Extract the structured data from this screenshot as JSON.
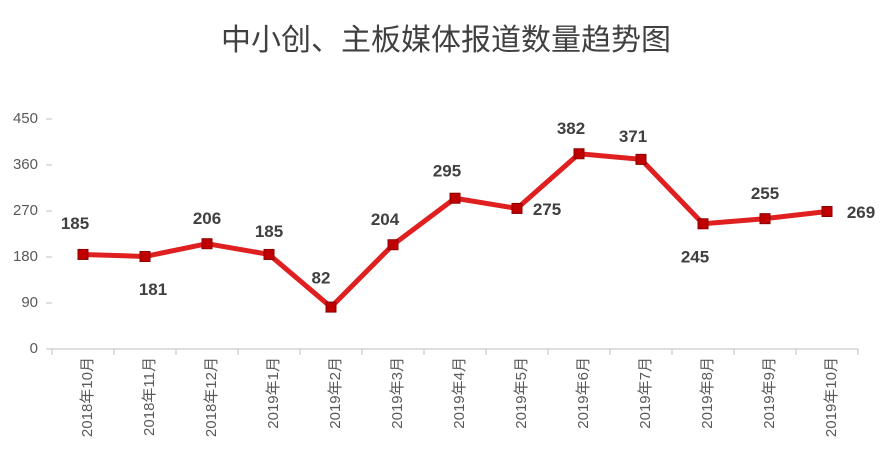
{
  "chart_data": {
    "type": "line",
    "title": "中小创、主板媒体报道数量趋势图",
    "categories": [
      "2018年10月",
      "2018年11月",
      "2018年12月",
      "2019年1月",
      "2019年2月",
      "2019年3月",
      "2019年4月",
      "2019年5月",
      "2019年6月",
      "2019年7月",
      "2019年8月",
      "2019年9月",
      "2019年10月"
    ],
    "values": [
      185,
      181,
      206,
      185,
      82,
      204,
      295,
      275,
      382,
      371,
      245,
      255,
      269
    ],
    "color": "#e02020",
    "ylim": [
      0,
      450
    ],
    "yticks": [
      0,
      90,
      180,
      270,
      360,
      450
    ],
    "grid": false
  }
}
